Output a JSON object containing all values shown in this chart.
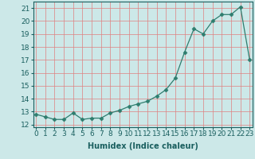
{
  "x": [
    0,
    1,
    2,
    3,
    4,
    5,
    6,
    7,
    8,
    9,
    10,
    11,
    12,
    13,
    14,
    15,
    16,
    17,
    18,
    19,
    20,
    21,
    22,
    23
  ],
  "y": [
    12.8,
    12.6,
    12.4,
    12.4,
    12.9,
    12.4,
    12.5,
    12.5,
    12.9,
    13.1,
    13.4,
    13.6,
    13.8,
    14.2,
    14.7,
    15.6,
    17.6,
    19.4,
    19.0,
    20.0,
    20.5,
    20.5,
    21.1,
    17.0
  ],
  "xlabel": "Humidex (Indice chaleur)",
  "xlim_min": -0.3,
  "xlim_max": 23.3,
  "ylim_min": 11.8,
  "ylim_max": 21.5,
  "yticks": [
    12,
    13,
    14,
    15,
    16,
    17,
    18,
    19,
    20,
    21
  ],
  "xticks": [
    0,
    1,
    2,
    3,
    4,
    5,
    6,
    7,
    8,
    9,
    10,
    11,
    12,
    13,
    14,
    15,
    16,
    17,
    18,
    19,
    20,
    21,
    22,
    23
  ],
  "line_color": "#2e7d6e",
  "marker": "D",
  "marker_size": 2.5,
  "bg_color": "#cce8e8",
  "grid_color": "#e08080",
  "xlabel_fontsize": 7,
  "tick_fontsize": 6.5
}
